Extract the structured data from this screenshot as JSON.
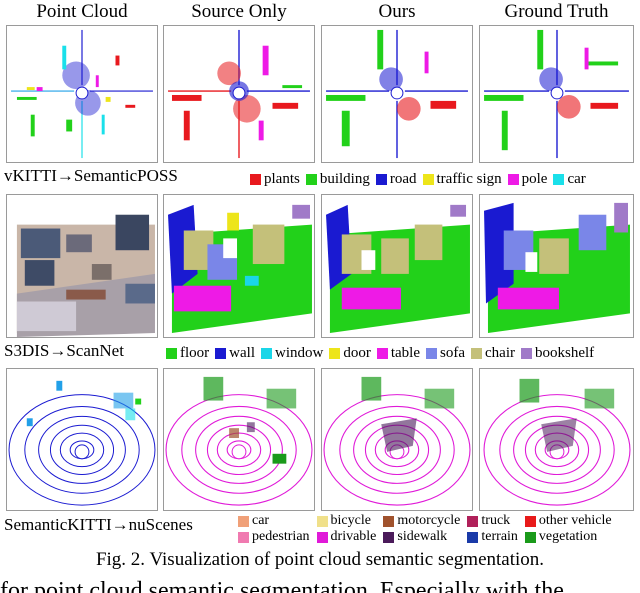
{
  "columns": [
    "Point Cloud",
    "Source Only",
    "Ours",
    "Ground Truth"
  ],
  "rows": [
    {
      "label": "vKITTI→SemanticPOSS",
      "legend": [
        {
          "name": "plants",
          "color": "#e8191e"
        },
        {
          "name": "building",
          "color": "#22d11a"
        },
        {
          "name": "road",
          "color": "#1a1ad1"
        },
        {
          "name": "traffic sign",
          "color": "#ede51a"
        },
        {
          "name": "pole",
          "color": "#ee1ae6"
        },
        {
          "name": "car",
          "color": "#1ae0ea"
        }
      ]
    },
    {
      "label": "S3DIS→ScanNet",
      "legend": [
        {
          "name": "floor",
          "color": "#22d11a"
        },
        {
          "name": "wall",
          "color": "#1a1ad1"
        },
        {
          "name": "window",
          "color": "#1ad6e8"
        },
        {
          "name": "door",
          "color": "#ede51a"
        },
        {
          "name": "table",
          "color": "#ee1ae6"
        },
        {
          "name": "sofa",
          "color": "#7a86e8"
        },
        {
          "name": "chair",
          "color": "#c4c07a"
        },
        {
          "name": "bookshelf",
          "color": "#a07ac8"
        }
      ]
    },
    {
      "label": "SemanticKITTI→nuScenes",
      "legend": [
        {
          "name": "car",
          "color": "#f0a078"
        },
        {
          "name": "bicycle",
          "color": "#f0e08a"
        },
        {
          "name": "motorcycle",
          "color": "#a0522d"
        },
        {
          "name": "truck",
          "color": "#b0205a"
        },
        {
          "name": "other vehicle",
          "color": "#e81a1a"
        },
        {
          "name": "pedestrian",
          "color": "#f07ab0"
        },
        {
          "name": "drivable",
          "color": "#e01ad8"
        },
        {
          "name": "sidewalk",
          "color": "#4a1a5a"
        },
        {
          "name": "terrain",
          "color": "#1a3aa8"
        },
        {
          "name": "vegetation",
          "color": "#1a9a1a"
        }
      ]
    }
  ],
  "caption": "Fig. 2.   Visualization of point cloud semantic segmentation.",
  "body_text": "for point cloud semantic segmentation. Especially with the"
}
